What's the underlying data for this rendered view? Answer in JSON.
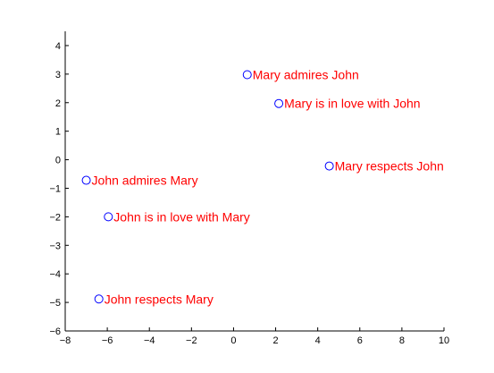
{
  "chart_data": {
    "type": "scatter",
    "title": "",
    "xlabel": "",
    "ylabel": "",
    "xlim": [
      -8,
      10
    ],
    "ylim": [
      -6,
      4.5
    ],
    "xticks": [
      -8,
      -6,
      -4,
      -2,
      0,
      2,
      4,
      6,
      8,
      10
    ],
    "yticks": [
      -6,
      -5,
      -4,
      -3,
      -2,
      -1,
      0,
      1,
      2,
      3,
      4
    ],
    "xtick_labels": [
      "−8",
      "−6",
      "−4",
      "−2",
      "0",
      "2",
      "4",
      "6",
      "8",
      "10"
    ],
    "ytick_labels": [
      "−6",
      "−5",
      "−4",
      "−3",
      "−2",
      "−1",
      "0",
      "1",
      "2",
      "3",
      "4"
    ],
    "grid": false,
    "marker_color": "#0000ff",
    "label_color": "#ff0000",
    "axis_color": "#000000",
    "points": [
      {
        "x": 0.65,
        "y": 2.98,
        "label": "Mary admires John"
      },
      {
        "x": 2.15,
        "y": 1.97,
        "label": "Mary is in love with John"
      },
      {
        "x": 4.55,
        "y": -0.22,
        "label": "Mary respects John"
      },
      {
        "x": -7.0,
        "y": -0.72,
        "label": "John admires Mary"
      },
      {
        "x": -5.95,
        "y": -2.0,
        "label": "John is in love with Mary"
      },
      {
        "x": -6.4,
        "y": -4.88,
        "label": "John respects Mary"
      }
    ]
  }
}
